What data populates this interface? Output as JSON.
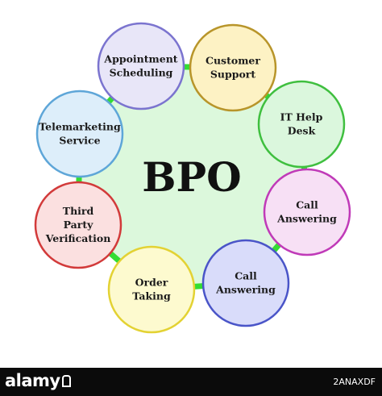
{
  "center": {
    "label": "BPO"
  },
  "nodes": [
    {
      "lines": [
        "Customer",
        "Support"
      ],
      "stroke": "#b8952a",
      "fill": "#fdf2c4"
    },
    {
      "lines": [
        "IT Help",
        "Desk"
      ],
      "stroke": "#3fbf3f",
      "fill": "#dbf7dd"
    },
    {
      "lines": [
        "Call",
        "Answering"
      ],
      "stroke": "#c03ab8",
      "fill": "#f7e0f5"
    },
    {
      "lines": [
        "Call",
        "Answering"
      ],
      "stroke": "#4a55c8",
      "fill": "#d9dcfa"
    },
    {
      "lines": [
        "Order",
        "Taking"
      ],
      "stroke": "#e3d233",
      "fill": "#fdfacf"
    },
    {
      "lines": [
        "Third",
        "Party",
        "Verification"
      ],
      "stroke": "#d23a3a",
      "fill": "#fbe0e0"
    },
    {
      "lines": [
        "Telemarketing",
        "Service"
      ],
      "stroke": "#5ea6d8",
      "fill": "#ddeefa"
    },
    {
      "lines": [
        "Appointment",
        "Scheduling"
      ],
      "stroke": "#7b74cf",
      "fill": "#e8e6f8"
    }
  ],
  "colors": {
    "hub_fill": "#dcf8dc",
    "connector": "#33dd33"
  },
  "watermark": {
    "brand": "alamy",
    "image_id": "2ANAXDF"
  }
}
